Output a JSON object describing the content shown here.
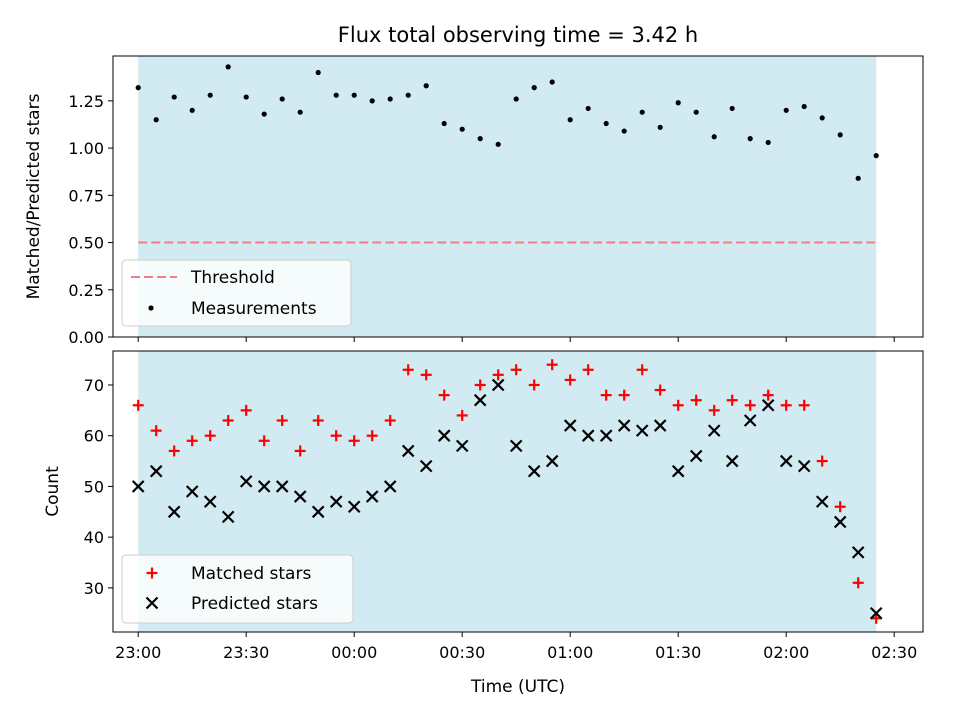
{
  "chart_data": [
    {
      "type": "scatter",
      "title": "Flux total observing time = 3.42 h",
      "ylabel": "Matched/Predicted stars",
      "xlabel": "",
      "ylim": [
        0,
        1.4875
      ],
      "yticks": [
        "0.00",
        "0.25",
        "0.50",
        "0.75",
        "1.00",
        "1.25"
      ],
      "yticks_values": [
        0,
        0.25,
        0.5,
        0.75,
        1.0,
        1.25
      ],
      "shaded_x_range": [
        0,
        205
      ],
      "threshold": 0.5,
      "legend_placement": "lower-left",
      "legend": [
        "Threshold",
        "Measurements"
      ],
      "colors": {
        "shade": "#add8e6",
        "threshold": "#f08080",
        "points": "#000000"
      },
      "x_minutes_from_2300": [
        0,
        5,
        10,
        15,
        20,
        25,
        30,
        35,
        40,
        45,
        50,
        55,
        60,
        65,
        70,
        75,
        80,
        85,
        90,
        95,
        100,
        105,
        110,
        115,
        120,
        125,
        130,
        135,
        140,
        145,
        150,
        155,
        160,
        165,
        170,
        175,
        180,
        185,
        190,
        195,
        200,
        205
      ],
      "series": [
        {
          "name": "Measurements",
          "values": [
            1.32,
            1.15,
            1.27,
            1.2,
            1.28,
            1.43,
            1.27,
            1.18,
            1.26,
            1.19,
            1.4,
            1.28,
            1.28,
            1.25,
            1.26,
            1.28,
            1.33,
            1.13,
            1.1,
            1.05,
            1.02,
            1.26,
            1.32,
            1.35,
            1.15,
            1.21,
            1.13,
            1.09,
            1.19,
            1.11,
            1.24,
            1.19,
            1.06,
            1.21,
            1.05,
            1.03,
            1.2,
            1.22,
            1.16,
            1.07,
            0.84,
            0.96
          ]
        }
      ]
    },
    {
      "type": "scatter",
      "title": "",
      "ylabel": "Count",
      "xlabel": "Time (UTC)",
      "ylim": [
        21.3,
        76.7
      ],
      "yticks": [
        "30",
        "40",
        "50",
        "60",
        "70"
      ],
      "yticks_values": [
        30,
        40,
        50,
        60,
        70
      ],
      "xlim_minutes": [
        -7,
        218
      ],
      "xticks": [
        "23:00",
        "23:30",
        "00:00",
        "00:30",
        "01:00",
        "01:30",
        "02:00",
        "02:30"
      ],
      "xticks_minutes": [
        0,
        30,
        60,
        90,
        120,
        150,
        180,
        210
      ],
      "shaded_x_range": [
        0,
        205
      ],
      "legend_placement": "lower-left",
      "legend": [
        "Matched stars",
        "Predicted stars"
      ],
      "colors": {
        "shade": "#add8e6",
        "matched": "#ff0000",
        "predicted": "#000000"
      },
      "x_minutes_from_2300": [
        0,
        5,
        10,
        15,
        20,
        25,
        30,
        35,
        40,
        45,
        50,
        55,
        60,
        65,
        70,
        75,
        80,
        85,
        90,
        95,
        100,
        105,
        110,
        115,
        120,
        125,
        130,
        135,
        140,
        145,
        150,
        155,
        160,
        165,
        170,
        175,
        180,
        185,
        190,
        195,
        200,
        205
      ],
      "series": [
        {
          "name": "Matched stars",
          "marker": "plus",
          "values": [
            66,
            61,
            57,
            59,
            60,
            63,
            65,
            59,
            63,
            57,
            63,
            60,
            59,
            60,
            63,
            73,
            72,
            68,
            64,
            70,
            72,
            73,
            70,
            74,
            71,
            73,
            68,
            68,
            73,
            69,
            66,
            67,
            65,
            67,
            66,
            68,
            66,
            66,
            55,
            46,
            31,
            24
          ]
        },
        {
          "name": "Predicted stars",
          "marker": "x",
          "values": [
            50,
            53,
            45,
            49,
            47,
            44,
            51,
            50,
            50,
            48,
            45,
            47,
            46,
            48,
            50,
            57,
            54,
            60,
            58,
            67,
            70,
            58,
            53,
            55,
            62,
            60,
            60,
            62,
            61,
            62,
            53,
            56,
            61,
            55,
            63,
            66,
            55,
            54,
            47,
            43,
            37,
            25
          ]
        }
      ]
    }
  ]
}
